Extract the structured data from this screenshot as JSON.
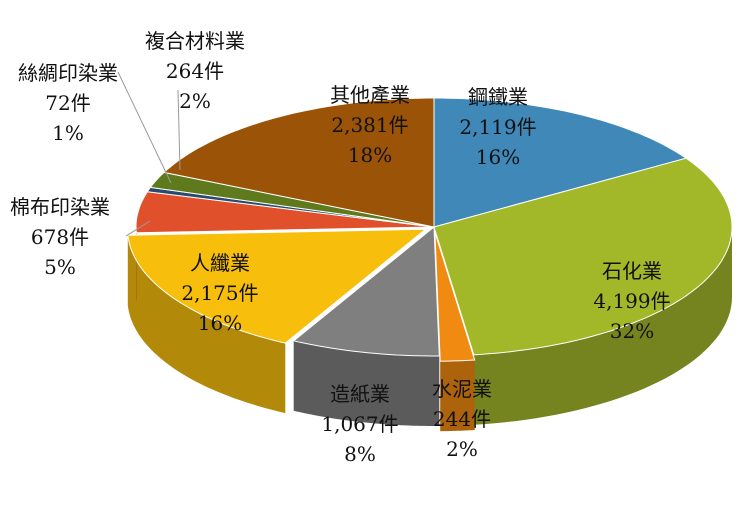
{
  "chart_data": {
    "type": "pie",
    "title": "",
    "style": "3d-exploded",
    "slices": [
      {
        "label": "鋼鐵業",
        "count": "2,119件",
        "percent": "16%",
        "value": 2119,
        "color": "#3f88b8"
      },
      {
        "label": "石化業",
        "count": "4,199件",
        "percent": "32%",
        "value": 4199,
        "color": "#a3b829"
      },
      {
        "label": "水泥業",
        "count": "244件",
        "percent": "2%",
        "value": 244,
        "color": "#f08a10"
      },
      {
        "label": "造紙業",
        "count": "1,067件",
        "percent": "8%",
        "value": 1067,
        "color": "#7f7f7f"
      },
      {
        "label": "人纖業",
        "count": "2,175件",
        "percent": "16%",
        "value": 2175,
        "color": "#f7be0c"
      },
      {
        "label": "棉布印染業",
        "count": "678件",
        "percent": "5%",
        "value": 678,
        "color": "#e0502a"
      },
      {
        "label": "絲綢印染業",
        "count": "72件",
        "percent": "1%",
        "value": 72,
        "color": "#2c4a6e"
      },
      {
        "label": "複合材料業",
        "count": "264件",
        "percent": "2%",
        "value": 264,
        "color": "#5e7a1c"
      },
      {
        "label": "其他產業",
        "count": "2,381件",
        "percent": "18%",
        "value": 2381,
        "color": "#9a5307"
      }
    ]
  }
}
